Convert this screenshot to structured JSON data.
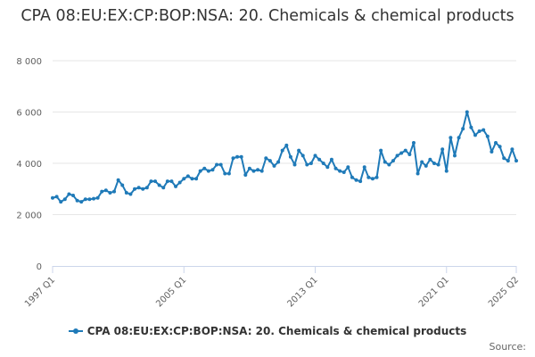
{
  "chart_data": {
    "type": "line",
    "title": "CPA 08:EU:EX:CP:BOP:NSA: 20. Chemicals & chemical products",
    "xlabel": "",
    "ylabel": "",
    "ylim": [
      0,
      8000
    ],
    "yticks": [
      0,
      2000,
      4000,
      6000,
      8000
    ],
    "ytick_labels": [
      "0",
      "2 000",
      "4 000",
      "6 000",
      "8 000"
    ],
    "xticks": [
      "1997 Q1",
      "2005 Q1",
      "2013 Q1",
      "2021 Q1",
      "2025 Q2"
    ],
    "grid": true,
    "legend_position": "bottom",
    "color": "#1f7ab8",
    "x_start": "1997 Q1",
    "series": [
      {
        "name": "CPA 08:EU:EX:CP:BOP:NSA: 20. Chemicals & chemical products",
        "values": [
          2650,
          2700,
          2500,
          2600,
          2800,
          2750,
          2550,
          2500,
          2600,
          2600,
          2620,
          2650,
          2900,
          2950,
          2850,
          2900,
          3350,
          3150,
          2850,
          2800,
          3000,
          3050,
          3000,
          3050,
          3300,
          3300,
          3150,
          3050,
          3300,
          3300,
          3100,
          3250,
          3400,
          3500,
          3400,
          3400,
          3700,
          3800,
          3700,
          3750,
          3950,
          3950,
          3600,
          3600,
          4200,
          4250,
          4250,
          3550,
          3800,
          3700,
          3750,
          3700,
          4200,
          4100,
          3900,
          4050,
          4500,
          4700,
          4250,
          3950,
          4500,
          4300,
          3950,
          4000,
          4300,
          4150,
          4000,
          3850,
          4150,
          3800,
          3700,
          3650,
          3850,
          3450,
          3350,
          3300,
          3850,
          3450,
          3400,
          3450,
          4500,
          4050,
          3950,
          4100,
          4300,
          4400,
          4500,
          4350,
          4800,
          3600,
          4050,
          3900,
          4150,
          4000,
          3950,
          4550,
          3700,
          5000,
          4300,
          5000,
          5350,
          6000,
          5400,
          5100,
          5250,
          5300,
          5050,
          4450,
          4800,
          4650,
          4200,
          4100,
          4550,
          4100
        ]
      }
    ]
  },
  "legend": {
    "label": "CPA 08:EU:EX:CP:BOP:NSA: 20. Chemicals & chemical products"
  },
  "source": {
    "label": "Source:"
  }
}
